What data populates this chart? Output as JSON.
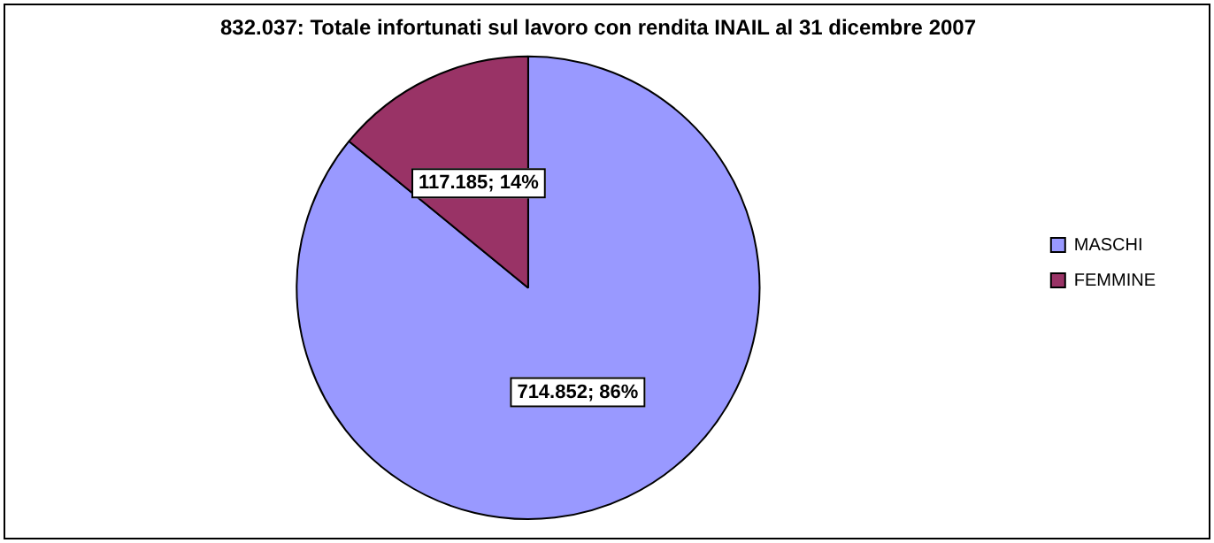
{
  "chart_data": {
    "type": "pie",
    "title": "832.037: Totale infortunati sul lavoro con rendita INAIL al 31 dicembre 2007",
    "categories": [
      "MASCHI",
      "FEMMINE"
    ],
    "values": [
      714852,
      117185
    ],
    "colors": [
      "#9999ff",
      "#993366"
    ],
    "value_labels": [
      "714.852; 86%",
      "117.185; 14%"
    ],
    "legend": "right"
  }
}
